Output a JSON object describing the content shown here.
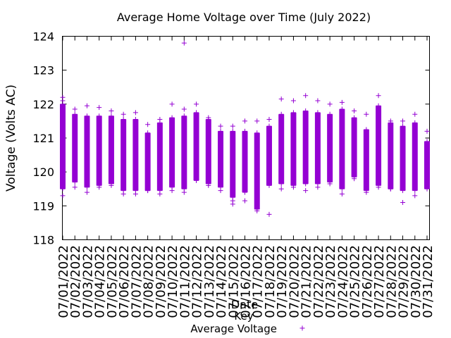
{
  "chart_data": {
    "type": "scatter",
    "title": "Average Home Voltage over Time (July 2022)",
    "xlabel": "Date",
    "ylabel": "Voltage (Volts AC)",
    "ylim": [
      118,
      124
    ],
    "yticks": [
      "118",
      "119",
      "120",
      "121",
      "122",
      "123",
      "124"
    ],
    "legend_title": "Key",
    "legend_placement": "bottom",
    "grid": false,
    "marker": "plus",
    "color": "#9400d3",
    "series": [
      {
        "name": "Average Voltage",
        "categories": [
          "07/01/2022",
          "07/02/2022",
          "07/03/2022",
          "07/04/2022",
          "07/05/2022",
          "07/06/2022",
          "07/07/2022",
          "07/08/2022",
          "07/09/2022",
          "07/10/2022",
          "07/11/2022",
          "07/12/2022",
          "07/13/2022",
          "07/14/2022",
          "07/15/2022",
          "07/16/2022",
          "07/17/2022",
          "07/18/2022",
          "07/19/2022",
          "07/20/2022",
          "07/21/2022",
          "07/22/2022",
          "07/23/2022",
          "07/24/2022",
          "07/25/2022",
          "07/26/2022",
          "07/27/2022",
          "07/28/2022",
          "07/29/2022",
          "07/30/2022",
          "07/31/2022"
        ],
        "ranges": [
          {
            "low": 119.5,
            "high": 122.0,
            "outliers": [
              122.2,
              119.3,
              122.1
            ]
          },
          {
            "low": 119.7,
            "high": 121.7,
            "outliers": [
              121.85,
              119.55
            ]
          },
          {
            "low": 119.55,
            "high": 121.65,
            "outliers": [
              121.95,
              119.4
            ]
          },
          {
            "low": 119.6,
            "high": 121.65,
            "outliers": [
              121.9,
              119.55
            ]
          },
          {
            "low": 119.65,
            "high": 121.65,
            "outliers": [
              121.8,
              119.6
            ]
          },
          {
            "low": 119.45,
            "high": 121.55,
            "outliers": [
              121.7,
              119.35
            ]
          },
          {
            "low": 119.45,
            "high": 121.55,
            "outliers": [
              121.75,
              119.35
            ]
          },
          {
            "low": 119.45,
            "high": 121.15,
            "outliers": [
              121.4,
              119.45
            ]
          },
          {
            "low": 119.45,
            "high": 121.45,
            "outliers": [
              121.55,
              119.35
            ]
          },
          {
            "low": 119.55,
            "high": 121.6,
            "outliers": [
              122.0,
              119.45
            ]
          },
          {
            "low": 119.5,
            "high": 121.65,
            "outliers": [
              123.8,
              121.85,
              119.4
            ]
          },
          {
            "low": 119.75,
            "high": 121.75,
            "outliers": [
              122.0,
              119.75
            ]
          },
          {
            "low": 119.65,
            "high": 121.55,
            "outliers": [
              121.6,
              119.6
            ]
          },
          {
            "low": 119.55,
            "high": 121.2,
            "outliers": [
              121.35,
              119.45
            ]
          },
          {
            "low": 119.25,
            "high": 121.2,
            "outliers": [
              121.35,
              119.05,
              119.15
            ]
          },
          {
            "low": 119.4,
            "high": 121.2,
            "outliers": [
              121.5,
              119.15
            ]
          },
          {
            "low": 118.9,
            "high": 121.15,
            "outliers": [
              121.5,
              118.85
            ]
          },
          {
            "low": 119.6,
            "high": 121.35,
            "outliers": [
              121.55,
              118.75
            ]
          },
          {
            "low": 119.65,
            "high": 121.7,
            "outliers": [
              122.15,
              119.5
            ]
          },
          {
            "low": 119.6,
            "high": 121.75,
            "outliers": [
              122.1,
              119.55
            ]
          },
          {
            "low": 119.65,
            "high": 121.8,
            "outliers": [
              122.25,
              119.45
            ]
          },
          {
            "low": 119.65,
            "high": 121.75,
            "outliers": [
              122.1,
              119.55
            ]
          },
          {
            "low": 119.7,
            "high": 121.7,
            "outliers": [
              122.0,
              119.65
            ]
          },
          {
            "low": 119.5,
            "high": 121.85,
            "outliers": [
              122.05,
              119.35
            ]
          },
          {
            "low": 119.85,
            "high": 121.6,
            "outliers": [
              121.8,
              119.8
            ]
          },
          {
            "low": 119.45,
            "high": 121.25,
            "outliers": [
              121.7,
              119.4
            ]
          },
          {
            "low": 119.6,
            "high": 121.95,
            "outliers": [
              122.25,
              119.55
            ]
          },
          {
            "low": 119.5,
            "high": 121.45,
            "outliers": [
              121.5,
              119.5
            ]
          },
          {
            "low": 119.45,
            "high": 121.35,
            "outliers": [
              121.5,
              119.1
            ]
          },
          {
            "low": 119.45,
            "high": 121.45,
            "outliers": [
              121.7,
              119.3
            ]
          },
          {
            "low": 119.5,
            "high": 120.9,
            "outliers": [
              121.2,
              120.05
            ]
          }
        ]
      }
    ]
  }
}
